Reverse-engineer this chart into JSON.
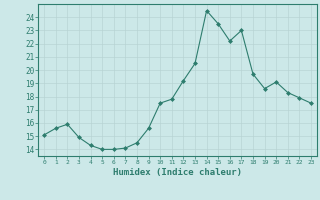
{
  "x": [
    0,
    1,
    2,
    3,
    4,
    5,
    6,
    7,
    8,
    9,
    10,
    11,
    12,
    13,
    14,
    15,
    16,
    17,
    18,
    19,
    20,
    21,
    22,
    23
  ],
  "y": [
    15.1,
    15.6,
    15.9,
    14.9,
    14.3,
    14.0,
    14.0,
    14.1,
    14.5,
    15.6,
    17.5,
    17.8,
    19.2,
    20.5,
    24.5,
    23.5,
    22.2,
    23.0,
    19.7,
    18.6,
    19.1,
    18.3,
    17.9,
    17.5
  ],
  "line_color": "#2e7d6e",
  "marker": "D",
  "marker_size": 2,
  "bg_color": "#cce8e8",
  "grid_color": "#b8d4d4",
  "xlabel": "Humidex (Indice chaleur)",
  "xlim": [
    -0.5,
    23.5
  ],
  "ylim": [
    13.5,
    25.0
  ],
  "yticks": [
    14,
    15,
    16,
    17,
    18,
    19,
    20,
    21,
    22,
    23,
    24
  ],
  "xticks": [
    0,
    1,
    2,
    3,
    4,
    5,
    6,
    7,
    8,
    9,
    10,
    11,
    12,
    13,
    14,
    15,
    16,
    17,
    18,
    19,
    20,
    21,
    22,
    23
  ],
  "tick_color": "#2e7d6e",
  "label_color": "#2e7d6e"
}
